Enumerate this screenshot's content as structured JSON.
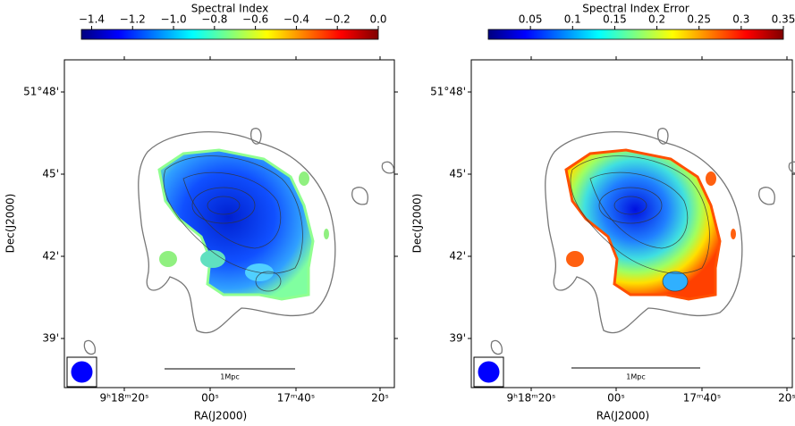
{
  "panels": [
    {
      "colorbar": {
        "label": "Spectral Index",
        "lim": [
          -1.45,
          0.0
        ],
        "ticks": [
          {
            "value": -1.4,
            "label": "−1.4"
          },
          {
            "value": -1.2,
            "label": "−1.2"
          },
          {
            "value": -1.0,
            "label": "−1.0"
          },
          {
            "value": -0.8,
            "label": "−0.8"
          },
          {
            "value": -0.6,
            "label": "−0.6"
          },
          {
            "value": -0.4,
            "label": "−0.4"
          },
          {
            "value": -0.2,
            "label": "−0.2"
          },
          {
            "value": 0,
            "label": "0.0"
          }
        ]
      },
      "xlabel": "RA(J2000)",
      "ylabel": "Dec(J2000)",
      "xtick_labels": [
        "9ʰ18ᵐ20ˢ",
        "00ˢ",
        "17ᵐ40ˢ",
        "20ˢ"
      ],
      "ytick_labels": [
        "51°48'",
        "45'",
        "42'",
        "39'"
      ],
      "scalebar_label": "1Mpc"
    },
    {
      "colorbar": {
        "label": "Spectral Index Error",
        "lim": [
          0,
          0.35
        ],
        "ticks": [
          0.05,
          0.1,
          0.15,
          0.2,
          0.25,
          0.3,
          0.35
        ]
      },
      "xlabel": "RA(J2000)",
      "ylabel": "Dec(J2000)",
      "xtick_labels": [
        "9ʰ18ᵐ20ˢ",
        "00ˢ",
        "17ᵐ40ˢ",
        "20ˢ"
      ],
      "ytick_labels": [
        "51°48'",
        "45'",
        "42'",
        "39'"
      ],
      "scalebar_label": "1Mpc"
    }
  ]
}
